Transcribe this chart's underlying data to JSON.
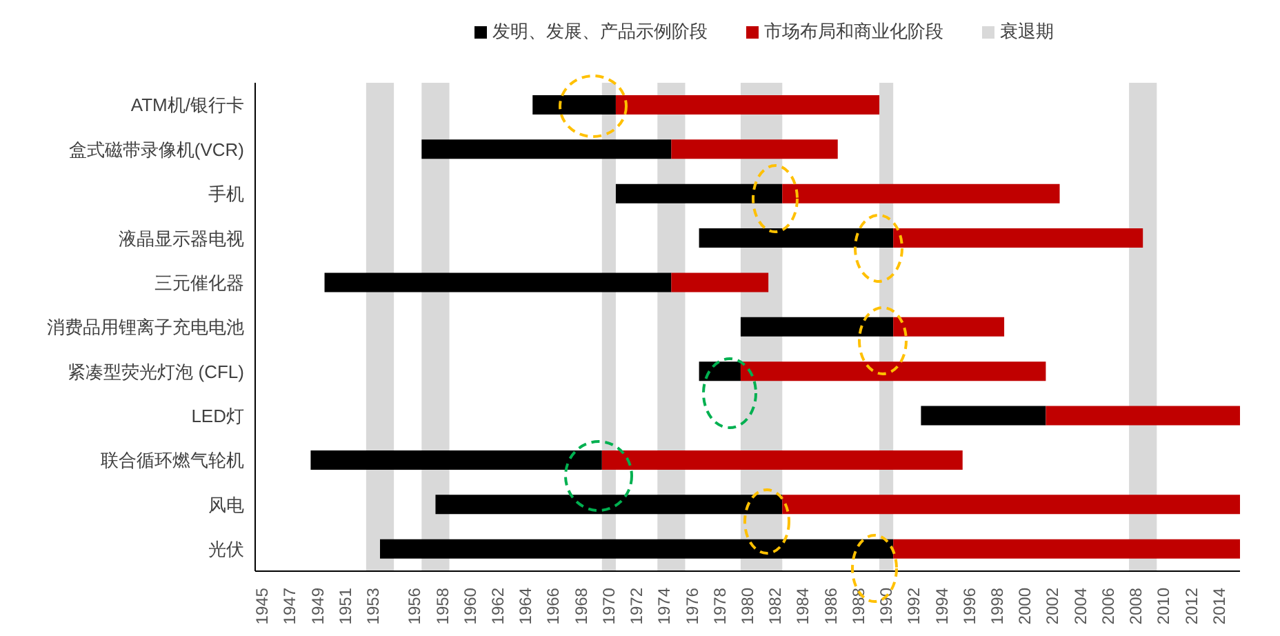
{
  "chart_data": {
    "type": "bar",
    "orientation": "horizontal",
    "categories": [
      "ATM机/银行卡",
      "盒式磁带录像机(VCR)",
      "手机",
      "液晶显示器电视",
      "三元催化器",
      "消费品用锂离子充电电池",
      "紧凑型荧光灯泡 (CFL)",
      "LED灯",
      "联合循环燃气轮机",
      "风电",
      "光伏"
    ],
    "series": [
      {
        "name": "发明、发展、产品示例阶段",
        "color": "#000000",
        "base": [
          1964.5,
          1956.5,
          1970.5,
          1976.5,
          1949.5,
          1979.5,
          1976.5,
          1992.5,
          1948.5,
          1957.5,
          1953.5
        ],
        "values": [
          6,
          18,
          12,
          14,
          25,
          11,
          3,
          9,
          21,
          25,
          37
        ]
      },
      {
        "name": "市场布局和商业化阶段",
        "color": "#c00000",
        "base": [
          1970.5,
          1974.5,
          1982.5,
          1990.5,
          1974.5,
          1990.5,
          1979.5,
          2001.5,
          1969.5,
          1982.5,
          1990.5
        ],
        "values": [
          19,
          12,
          20,
          18,
          7,
          8,
          22,
          14,
          26,
          33,
          25
        ]
      }
    ],
    "xlim": [
      1944.5,
      2015.5
    ],
    "xticks": [
      1945,
      1947,
      1949,
      1951,
      1953,
      1956,
      1958,
      1960,
      1962,
      1964,
      1966,
      1968,
      1970,
      1972,
      1974,
      1976,
      1978,
      1980,
      1982,
      1984,
      1986,
      1988,
      1990,
      1992,
      1994,
      1996,
      1998,
      2000,
      2002,
      2004,
      2006,
      2008,
      2010,
      2012,
      2014
    ],
    "bands": [
      {
        "axis": "x",
        "from": 1952.5,
        "to": 1954.5,
        "label": "衰退期",
        "color": "#d9d9d9"
      },
      {
        "axis": "x",
        "from": 1956.5,
        "to": 1958.5,
        "color": "#d9d9d9"
      },
      {
        "axis": "x",
        "from": 1969.5,
        "to": 1970.5,
        "color": "#d9d9d9"
      },
      {
        "axis": "x",
        "from": 1973.5,
        "to": 1975.5,
        "color": "#d9d9d9"
      },
      {
        "axis": "x",
        "from": 1979.5,
        "to": 1982.5,
        "color": "#d9d9d9"
      },
      {
        "axis": "x",
        "from": 1989.5,
        "to": 1990.5,
        "color": "#d9d9d9"
      },
      {
        "axis": "x",
        "from": 2007.5,
        "to": 2009.5,
        "color": "#d9d9d9"
      }
    ],
    "legend": "top",
    "grid": false
  }
}
